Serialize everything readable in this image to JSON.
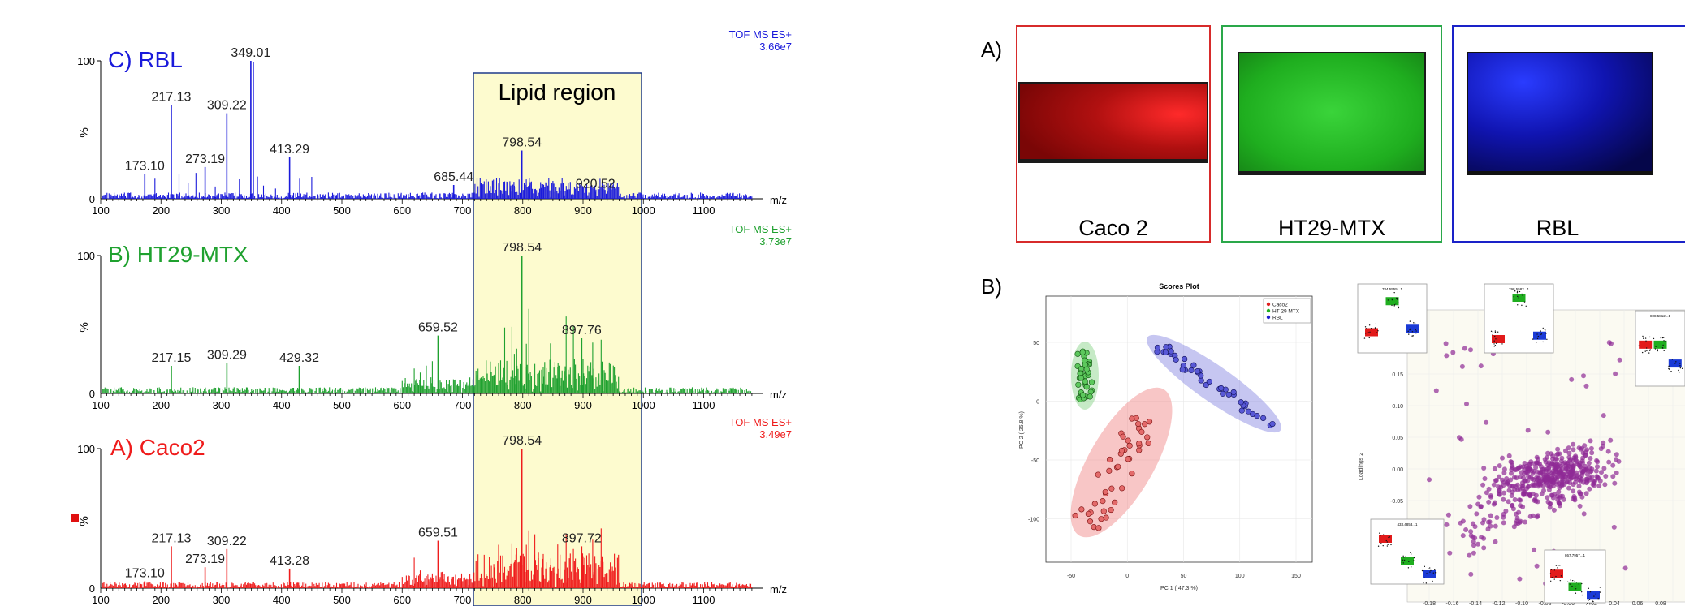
{
  "spectra": {
    "lipid_region_label": "Lipid region",
    "x_unit": "m/z",
    "y_unit": "%",
    "y_max_label": "100",
    "y_zero_label": "0",
    "x_ticks": [
      "100",
      "200",
      "300",
      "400",
      "500",
      "600",
      "700",
      "800",
      "900",
      "1000",
      "1100"
    ],
    "panels": [
      {
        "title": "C) RBL",
        "color": "#1a1adb",
        "instrument": "TOF MS ES+",
        "intensity": "3.66e7",
        "peaks": [
          {
            "mz": 173.1,
            "h": 18,
            "label": "173.10"
          },
          {
            "mz": 217.13,
            "h": 68,
            "label": "217.13"
          },
          {
            "mz": 273.19,
            "h": 23,
            "label": "273.19"
          },
          {
            "mz": 309.22,
            "h": 62,
            "label": "309.22"
          },
          {
            "mz": 349.01,
            "h": 100,
            "label": "349.01"
          },
          {
            "mz": 413.29,
            "h": 30,
            "label": "413.29"
          },
          {
            "mz": 685.44,
            "h": 10,
            "label": "685.44"
          },
          {
            "mz": 798.54,
            "h": 35,
            "label": "798.54"
          },
          {
            "mz": 920.52,
            "h": 5,
            "label": "920.52"
          }
        ]
      },
      {
        "title": "B) HT29-MTX",
        "color": "#1fa12f",
        "instrument": "TOF MS ES+",
        "intensity": "3.73e7",
        "peaks": [
          {
            "mz": 217.15,
            "h": 20,
            "label": "217.15"
          },
          {
            "mz": 309.29,
            "h": 22,
            "label": "309.29"
          },
          {
            "mz": 429.32,
            "h": 20,
            "label": "429.32"
          },
          {
            "mz": 659.52,
            "h": 42,
            "label": "659.52"
          },
          {
            "mz": 798.54,
            "h": 100,
            "label": "798.54"
          },
          {
            "mz": 897.76,
            "h": 40,
            "label": "897.76"
          }
        ]
      },
      {
        "title": "A) Caco2",
        "color": "#ef1c1c",
        "instrument": "TOF MS ES+",
        "intensity": "3.49e7",
        "peaks": [
          {
            "mz": 173.1,
            "h": 5,
            "label": "173.10"
          },
          {
            "mz": 217.13,
            "h": 30,
            "label": "217.13"
          },
          {
            "mz": 273.19,
            "h": 15,
            "label": "273.19"
          },
          {
            "mz": 309.22,
            "h": 28,
            "label": "309.22"
          },
          {
            "mz": 413.28,
            "h": 14,
            "label": "413.28"
          },
          {
            "mz": 659.51,
            "h": 34,
            "label": "659.51"
          },
          {
            "mz": 798.54,
            "h": 100,
            "label": "798.54"
          },
          {
            "mz": 897.72,
            "h": 30,
            "label": "897.72"
          }
        ]
      }
    ]
  },
  "section_a_label": "A)",
  "section_b_label": "B)",
  "images": [
    {
      "caption": "Caco 2",
      "color": "#d72b2b"
    },
    {
      "caption": "HT29-MTX",
      "color": "#2aa84a"
    },
    {
      "caption": "RBL",
      "color": "#1a22c8"
    }
  ],
  "scores_plot": {
    "title": "Scores Plot",
    "xlabel": "PC 1 ( 47.3 %)",
    "ylabel": "PC 2 ( 25.8 %)",
    "x_ticks": [
      "-50",
      "0",
      "50",
      "100",
      "150"
    ],
    "y_ticks": [
      "50",
      "0",
      "-50",
      "-100"
    ],
    "legend": [
      {
        "name": "Caco2",
        "color": "#e02020"
      },
      {
        "name": "HT 29 MTX",
        "color": "#20b020"
      },
      {
        "name": "RBL",
        "color": "#2020d0"
      }
    ]
  },
  "loadings_plot": {
    "ylabel": "Loadings 2",
    "y_ticks": [
      "0.15",
      "0.10",
      "0.05",
      "0.00",
      "-0.05"
    ],
    "x_ticks": [
      "-0.18",
      "-0.16",
      "-0.14",
      "-0.12",
      "-0.10",
      "-0.08",
      "-0.06",
      "…02",
      "0.04",
      "0.06",
      "0.08"
    ],
    "inset_titles": [
      "784.5555...1",
      "798.5582...1",
      "808.5812...1",
      "433.4853...1",
      "867.7957...1"
    ]
  }
}
